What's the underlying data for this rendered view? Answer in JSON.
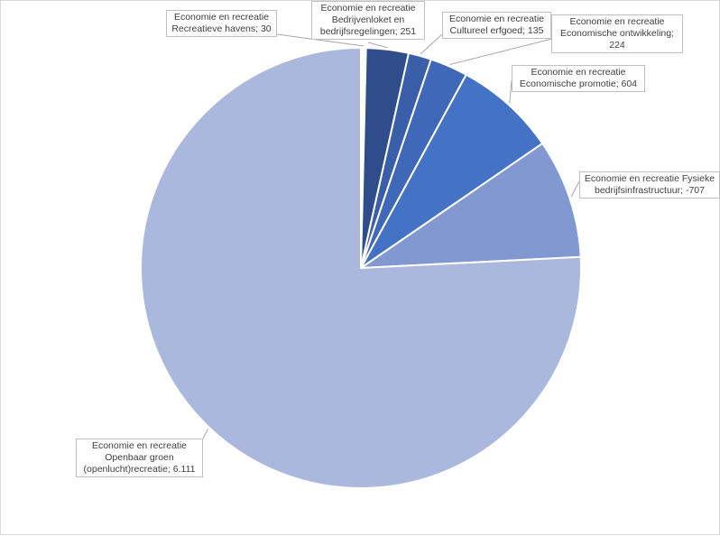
{
  "chart_data": {
    "type": "pie",
    "title": "",
    "colors": [
      "#2f4d8a",
      "#3a5fa8",
      "#3f68b8",
      "#4472c4",
      "#8198d0",
      "#a9b8dc"
    ],
    "slices": [
      {
        "category": "Economie en recreatie",
        "sublabel": "Recreatieve havens",
        "value": 30,
        "value_label": "30"
      },
      {
        "category": "Economie en recreatie",
        "sublabel": "Bedrijvenloket en bedrijfsregelingen",
        "value": 251,
        "value_label": "251"
      },
      {
        "category": "Economie en recreatie",
        "sublabel": "Cultureel erfgoed",
        "value": 135,
        "value_label": "135"
      },
      {
        "category": "Economie en recreatie",
        "sublabel": "Economische ontwikkeling",
        "value": 224,
        "value_label": "224"
      },
      {
        "category": "Economie en recreatie",
        "sublabel": "Economische promotie",
        "value": 604,
        "value_label": "604"
      },
      {
        "category": "Economie en recreatie",
        "sublabel": "Fysieke bedrijfsinfrastructuur",
        "value": -707,
        "value_label": "-707"
      },
      {
        "category": "Economie en recreatie",
        "sublabel": "Openbaar groen (openlucht)recreatie",
        "value": 6111,
        "value_label": "6.111"
      }
    ],
    "labels": [
      {
        "lines": [
          "Economie en recreatie",
          "Recreatieve havens; 30"
        ]
      },
      {
        "lines": [
          "Economie en recreatie",
          "Bedrijvenloket en",
          "bedrijfsregelingen; 251"
        ]
      },
      {
        "lines": [
          "Economie en recreatie",
          "Cultureel erfgoed; 135"
        ]
      },
      {
        "lines": [
          "Economie en recreatie",
          "Economische ontwikkeling;",
          "224"
        ]
      },
      {
        "lines": [
          "Economie en recreatie",
          "Economische promotie; 604"
        ]
      },
      {
        "lines": [
          "Economie en recreatie Fysieke",
          "bedrijfsinfrastructuur; -707"
        ]
      },
      {
        "lines": [
          "Economie en recreatie",
          "Openbaar groen",
          "(openlucht)recreatie; 6.111"
        ]
      }
    ]
  }
}
